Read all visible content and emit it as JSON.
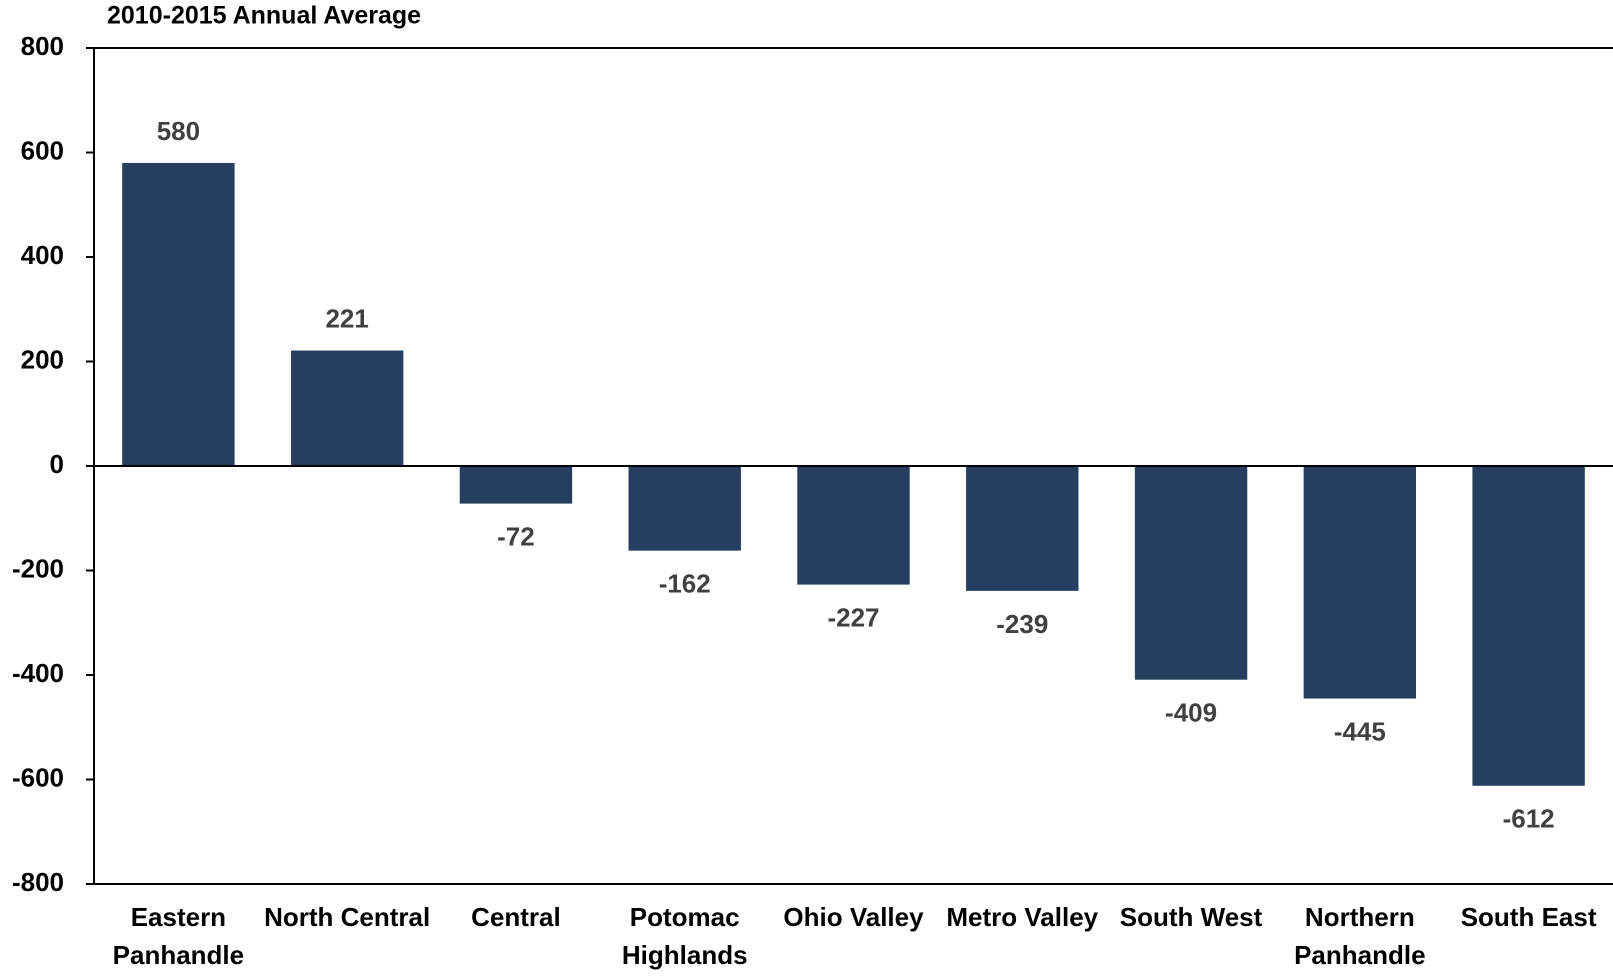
{
  "chart_data": {
    "type": "bar",
    "title": "2010-2015 Annual Average",
    "categories": [
      "Eastern Panhandle",
      "North Central",
      "Central",
      "Potomac Highlands",
      "Ohio Valley",
      "Metro Valley",
      "South West",
      "Northern Panhandle",
      "South East"
    ],
    "values": [
      580,
      221,
      -72,
      -162,
      -227,
      -239,
      -409,
      -445,
      -612
    ],
    "color": "#263f60",
    "ylim": [
      -800,
      800
    ],
    "yticks": [
      -800,
      -600,
      -400,
      -200,
      0,
      200,
      400,
      600,
      800
    ],
    "grid": false
  }
}
